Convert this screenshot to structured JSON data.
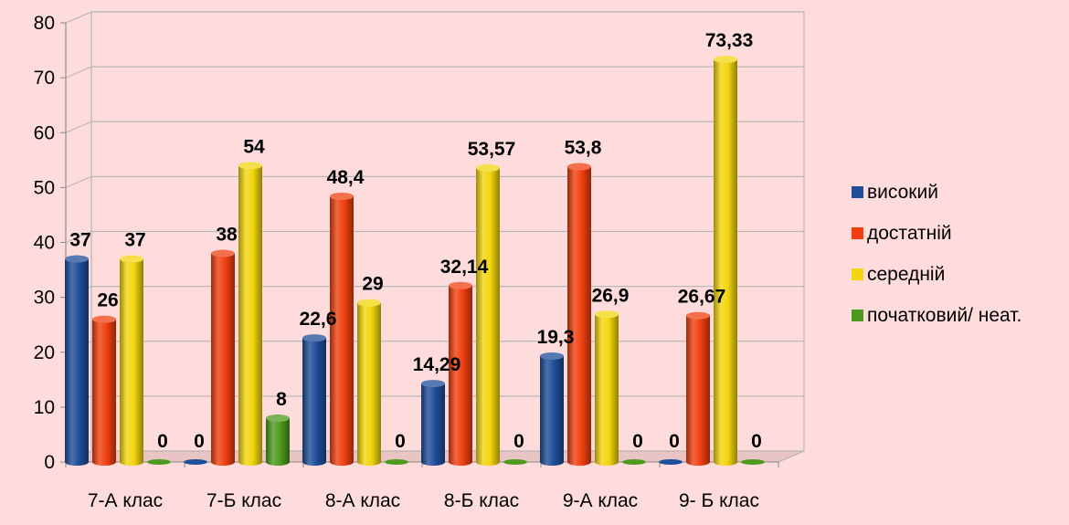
{
  "chart_data": {
    "type": "bar",
    "categories": [
      "7-А клас",
      "7-Б клас",
      "8-А клас",
      "8-Б клас",
      "9-А клас",
      "9- Б клас"
    ],
    "series": [
      {
        "name": "високий",
        "color": "#1F4E9A",
        "values": [
          37,
          0,
          22.6,
          14.29,
          19.3,
          0
        ],
        "labels": [
          "37",
          "0",
          "22,6",
          "14,29",
          "19,3",
          "0"
        ]
      },
      {
        "name": "достатній",
        "color": "#F04010",
        "values": [
          26,
          38,
          48.4,
          32.14,
          53.8,
          26.67
        ],
        "labels": [
          "26",
          "38",
          "48,4",
          "32,14",
          "53,8",
          "26,67"
        ]
      },
      {
        "name": "середній",
        "color": "#F2D60E",
        "values": [
          37,
          54,
          29,
          53.57,
          26.9,
          73.33
        ],
        "labels": [
          "37",
          "54",
          "29",
          "53,57",
          "26,9",
          "73,33"
        ]
      },
      {
        "name": "початковий/ неат.",
        "color": "#4E9A1E",
        "values": [
          0,
          8,
          0,
          0,
          0,
          0
        ],
        "labels": [
          "0",
          "8",
          "0",
          "0",
          "0",
          "0"
        ]
      }
    ],
    "ylim": [
      0,
      80
    ],
    "yticks": [
      "0",
      "10",
      "20",
      "30",
      "40",
      "50",
      "60",
      "70",
      "80"
    ],
    "grid": true,
    "legend": "right",
    "title": "",
    "xlabel": "",
    "ylabel": ""
  }
}
